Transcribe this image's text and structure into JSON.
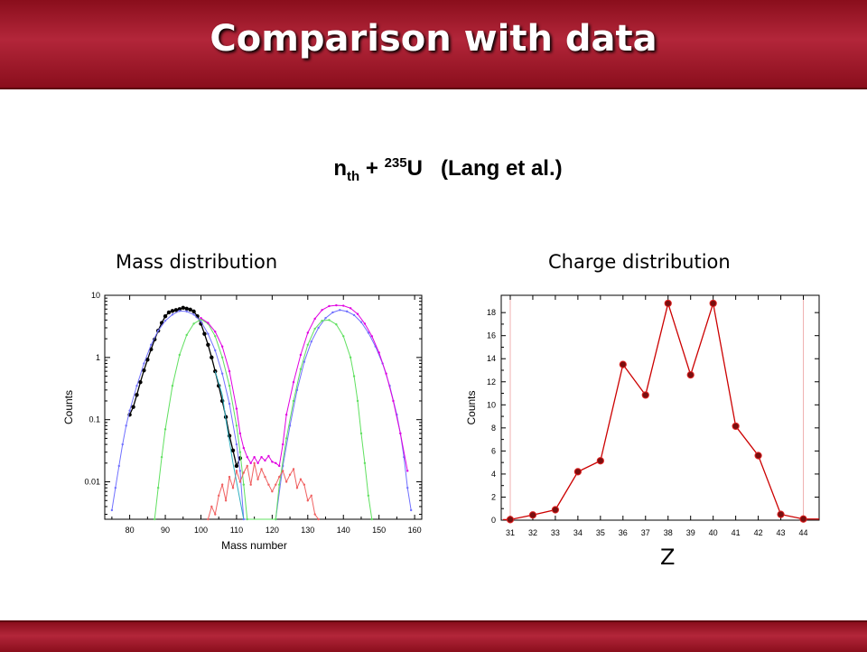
{
  "header": {
    "title": "Comparison with data"
  },
  "reaction": {
    "particle": "n",
    "particle_sub": "th",
    "plus": "+",
    "mass_number": "235",
    "element": "U",
    "reference": "(Lang et al.)"
  },
  "chart_data": [
    {
      "type": "line",
      "panel_label": "Mass distribution",
      "xlabel": "Mass number",
      "ylabel": "Counts",
      "yscale": "log",
      "xlim": [
        73,
        162
      ],
      "ylim": [
        0.0025,
        10
      ],
      "xticks": [
        80,
        90,
        100,
        110,
        120,
        130,
        140,
        150,
        160
      ],
      "yticks": [
        0.01,
        0.1,
        1,
        10
      ],
      "ytick_labels": [
        "0.01",
        "0.1",
        "1",
        "10"
      ],
      "grid": false,
      "series": [
        {
          "color": "#000000",
          "marker": "filled",
          "points": [
            [
              80,
              0.12
            ],
            [
              81,
              0.16
            ],
            [
              82,
              0.25
            ],
            [
              83,
              0.4
            ],
            [
              84,
              0.62
            ],
            [
              85,
              0.92
            ],
            [
              86,
              1.35
            ],
            [
              87,
              1.95
            ],
            [
              88,
              2.7
            ],
            [
              89,
              3.6
            ],
            [
              90,
              4.6
            ],
            [
              91,
              5.3
            ],
            [
              92,
              5.6
            ],
            [
              93,
              5.8
            ],
            [
              94,
              6.0
            ],
            [
              95,
              6.3
            ],
            [
              96,
              6.1
            ],
            [
              97,
              5.9
            ],
            [
              98,
              5.5
            ],
            [
              99,
              4.6
            ],
            [
              100,
              3.5
            ],
            [
              101,
              2.4
            ],
            [
              102,
              1.6
            ],
            [
              103,
              1.0
            ],
            [
              104,
              0.6
            ],
            [
              105,
              0.35
            ],
            [
              106,
              0.2
            ],
            [
              107,
              0.11
            ],
            [
              108,
              0.055
            ],
            [
              109,
              0.032
            ],
            [
              110,
              0.018
            ],
            [
              111,
              0.024
            ]
          ]
        },
        {
          "color": "#7070ff",
          "marker": "dot",
          "points": [
            [
              75,
              0.0035
            ],
            [
              76,
              0.008
            ],
            [
              77,
              0.018
            ],
            [
              78,
              0.04
            ],
            [
              79,
              0.08
            ],
            [
              80,
              0.14
            ],
            [
              82,
              0.35
            ],
            [
              84,
              0.8
            ],
            [
              86,
              1.6
            ],
            [
              88,
              2.7
            ],
            [
              90,
              3.9
            ],
            [
              92,
              4.9
            ],
            [
              94,
              5.6
            ],
            [
              96,
              5.5
            ],
            [
              98,
              4.9
            ],
            [
              100,
              3.8
            ],
            [
              102,
              2.4
            ],
            [
              104,
              1.3
            ],
            [
              106,
              0.55
            ],
            [
              108,
              0.18
            ],
            [
              110,
              0.04
            ],
            [
              111,
              0.015
            ],
            [
              112,
              0.0025
            ],
            [
              121,
              0.0025
            ],
            [
              123,
              0.018
            ],
            [
              125,
              0.08
            ],
            [
              127,
              0.3
            ],
            [
              129,
              0.85
            ],
            [
              131,
              1.8
            ],
            [
              133,
              3.0
            ],
            [
              135,
              4.3
            ],
            [
              137,
              5.3
            ],
            [
              139,
              5.8
            ],
            [
              141,
              5.5
            ],
            [
              143,
              4.8
            ],
            [
              145,
              3.7
            ],
            [
              147,
              2.5
            ],
            [
              149,
              1.5
            ],
            [
              151,
              0.8
            ],
            [
              153,
              0.35
            ],
            [
              155,
              0.12
            ],
            [
              156,
              0.06
            ],
            [
              157,
              0.025
            ],
            [
              158,
              0.008
            ],
            [
              159,
              0.0035
            ]
          ]
        },
        {
          "color": "#60e060",
          "marker": "dot",
          "points": [
            [
              87,
              0.0025
            ],
            [
              88,
              0.008
            ],
            [
              89,
              0.025
            ],
            [
              90,
              0.07
            ],
            [
              92,
              0.35
            ],
            [
              94,
              1.1
            ],
            [
              96,
              2.3
            ],
            [
              98,
              3.5
            ],
            [
              100,
              4.1
            ],
            [
              102,
              3.5
            ],
            [
              104,
              2.2
            ],
            [
              106,
              1.0
            ],
            [
              108,
              0.35
            ],
            [
              110,
              0.08
            ],
            [
              111,
              0.03
            ],
            [
              112,
              0.009
            ],
            [
              113,
              0.0025
            ],
            [
              121,
              0.0025
            ],
            [
              122,
              0.009
            ],
            [
              124,
              0.05
            ],
            [
              126,
              0.2
            ],
            [
              128,
              0.65
            ],
            [
              130,
              1.6
            ],
            [
              132,
              2.9
            ],
            [
              134,
              3.9
            ],
            [
              136,
              4.0
            ],
            [
              138,
              3.4
            ],
            [
              140,
              2.2
            ],
            [
              142,
              1.0
            ],
            [
              143,
              0.5
            ],
            [
              144,
              0.2
            ],
            [
              145,
              0.06
            ],
            [
              146,
              0.02
            ],
            [
              147,
              0.006
            ],
            [
              148,
              0.0025
            ]
          ]
        },
        {
          "color": "#e000e0",
          "marker": "dot",
          "points": [
            [
              100,
              4.3
            ],
            [
              102,
              3.6
            ],
            [
              104,
              2.6
            ],
            [
              106,
              1.5
            ],
            [
              108,
              0.6
            ],
            [
              110,
              0.15
            ],
            [
              111,
              0.06
            ],
            [
              112,
              0.035
            ],
            [
              113,
              0.025
            ],
            [
              114,
              0.02
            ],
            [
              115,
              0.025
            ],
            [
              116,
              0.02
            ],
            [
              117,
              0.025
            ],
            [
              118,
              0.022
            ],
            [
              119,
              0.026
            ],
            [
              120,
              0.021
            ],
            [
              121,
              0.02
            ],
            [
              122,
              0.018
            ],
            [
              123,
              0.04
            ],
            [
              124,
              0.12
            ],
            [
              126,
              0.4
            ],
            [
              128,
              1.1
            ],
            [
              130,
              2.5
            ],
            [
              132,
              4.2
            ],
            [
              134,
              5.8
            ],
            [
              136,
              6.7
            ],
            [
              138,
              6.9
            ],
            [
              140,
              6.8
            ],
            [
              142,
              6.2
            ],
            [
              144,
              5.0
            ],
            [
              146,
              3.5
            ],
            [
              148,
              2.2
            ],
            [
              150,
              1.2
            ],
            [
              152,
              0.55
            ],
            [
              154,
              0.2
            ],
            [
              156,
              0.06
            ],
            [
              158,
              0.015
            ]
          ]
        },
        {
          "color": "#f06060",
          "marker": "dot",
          "points": [
            [
              102,
              0.0025
            ],
            [
              103,
              0.004
            ],
            [
              104,
              0.003
            ],
            [
              105,
              0.006
            ],
            [
              106,
              0.009
            ],
            [
              107,
              0.005
            ],
            [
              108,
              0.012
            ],
            [
              109,
              0.008
            ],
            [
              110,
              0.015
            ],
            [
              111,
              0.01
            ],
            [
              112,
              0.014
            ],
            [
              113,
              0.018
            ],
            [
              114,
              0.009
            ],
            [
              115,
              0.02
            ],
            [
              116,
              0.011
            ],
            [
              117,
              0.016
            ],
            [
              118,
              0.012
            ],
            [
              119,
              0.009
            ],
            [
              120,
              0.007
            ],
            [
              121,
              0.009
            ],
            [
              122,
              0.012
            ],
            [
              123,
              0.015
            ],
            [
              124,
              0.01
            ],
            [
              125,
              0.013
            ],
            [
              126,
              0.016
            ],
            [
              127,
              0.008
            ],
            [
              128,
              0.011
            ],
            [
              129,
              0.009
            ],
            [
              130,
              0.005
            ],
            [
              131,
              0.006
            ],
            [
              132,
              0.003
            ],
            [
              133,
              0.0025
            ]
          ]
        },
        {
          "color": "#30b0c0",
          "marker": "none",
          "points": [
            [
              104,
              0.6
            ],
            [
              106,
              0.25
            ],
            [
              107,
              0.1
            ],
            [
              108,
              0.045
            ],
            [
              109,
              0.02
            ],
            [
              110,
              0.01
            ],
            [
              111,
              0.005
            ],
            [
              112,
              0.0025
            ]
          ]
        }
      ]
    },
    {
      "type": "line",
      "panel_label": "Charge distribution",
      "xlabel": "Z",
      "ylabel": "Counts",
      "xlim": [
        30.6,
        44.7
      ],
      "ylim": [
        0,
        19.5
      ],
      "xticks": [
        31,
        32,
        33,
        34,
        35,
        36,
        37,
        38,
        39,
        40,
        41,
        42,
        43,
        44
      ],
      "yticks": [
        0,
        2,
        4,
        6,
        8,
        10,
        12,
        14,
        16,
        18
      ],
      "grid": false,
      "vlines": [
        31,
        44
      ],
      "series": [
        {
          "color": "#cc0000",
          "marker": "filled-circle",
          "x": [
            31,
            32,
            33,
            34,
            35,
            36,
            37,
            38,
            39,
            40,
            41,
            42,
            43,
            44
          ],
          "y": [
            0.05,
            0.45,
            0.9,
            4.2,
            5.15,
            13.5,
            10.85,
            18.8,
            12.6,
            18.8,
            8.15,
            5.6,
            0.5,
            0.1
          ]
        }
      ]
    }
  ]
}
